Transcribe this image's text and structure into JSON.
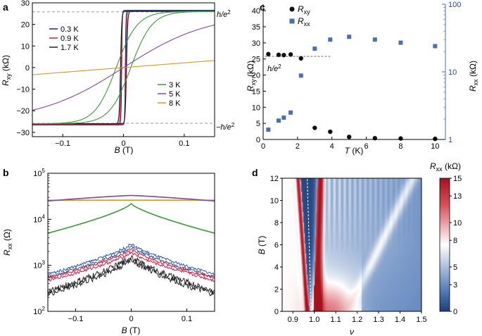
{
  "panels": {
    "a": {
      "label": "a"
    },
    "b": {
      "label": "b"
    },
    "c": {
      "label": "c"
    },
    "d": {
      "label": "d"
    }
  },
  "chart_data": [
    {
      "id": "a",
      "type": "line",
      "xlabel_var": "B",
      "xlabel_unit": "(T)",
      "ylabel_var": "R",
      "ylabel_sub": "xy",
      "ylabel_unit": "(kΩ)",
      "xlim": [
        -0.15,
        0.15
      ],
      "ylim": [
        -32,
        30
      ],
      "xticks": [
        -0.1,
        0,
        0.1
      ],
      "xtick_labels": [
        "−0.1",
        "0",
        "0.1"
      ],
      "yticks": [
        -30,
        -20,
        -10,
        0,
        10,
        20,
        30
      ],
      "ytick_labels": [
        "−30",
        "−20",
        "−10",
        "0",
        "10",
        "20",
        "30"
      ],
      "reference_lines": [
        {
          "y": 25.8,
          "label": "h/e",
          "sup": "2"
        },
        {
          "y": -25.8,
          "label": "−h/e",
          "sup": "2"
        }
      ],
      "series": [
        {
          "name": "0.3 K",
          "color": "#1c2a6b",
          "kind": "step",
          "plateau": 26.5,
          "width": 0.004,
          "hysteresis": 0.003
        },
        {
          "name": "0.9 K",
          "color": "#d11f3c",
          "kind": "step",
          "plateau": 26.2,
          "width": 0.006,
          "hysteresis": 0.004
        },
        {
          "name": "1.7 K",
          "color": "#222222",
          "kind": "step",
          "plateau": 26.0,
          "width": 0.008,
          "hysteresis": 0.005
        },
        {
          "name": "3 K",
          "color": "#3c9a3c",
          "kind": "tanh",
          "plateau": 26.0,
          "width": 0.035,
          "hysteresis": 0.012
        },
        {
          "name": "5 K",
          "color": "#7f4aa3",
          "kind": "tanh",
          "plateau": 25.0,
          "width": 0.14,
          "hysteresis": 0.0
        },
        {
          "name": "8 K",
          "color": "#d39a24",
          "kind": "linear",
          "slope": 22.0,
          "hysteresis": 0.0
        }
      ],
      "legend_groups": [
        {
          "position": "upper-left",
          "items": [
            "0.3 K",
            "0.9 K",
            "1.7 K"
          ]
        },
        {
          "position": "lower-right",
          "items": [
            "3 K",
            "5 K",
            "8 K"
          ]
        }
      ]
    },
    {
      "id": "b",
      "type": "line",
      "yscale": "log",
      "xlabel_var": "B",
      "xlabel_unit": "(T)",
      "ylabel_var": "R",
      "ylabel_sub": "xx",
      "ylabel_unit": "(Ω)",
      "xlim": [
        -0.15,
        0.15
      ],
      "ylim": [
        100,
        100000
      ],
      "xticks": [
        -0.1,
        0,
        0.1
      ],
      "xtick_labels": [
        "−0.1",
        "0",
        "0.1"
      ],
      "ytick_values": [
        100,
        1000,
        10000,
        100000
      ],
      "ytick_base": "10",
      "ytick_exps": [
        "2",
        "3",
        "4",
        "5"
      ],
      "series": [
        {
          "name": "8 K",
          "color": "#d39a24",
          "peak": 26000,
          "edge": 26000
        },
        {
          "name": "5 K",
          "color": "#7f4aa3",
          "peak": 33000,
          "edge": 25000
        },
        {
          "name": "3 K",
          "color": "#3c9a3c",
          "peak": 22000,
          "edge": 5000
        },
        {
          "name": "1.7 K",
          "color": "#2f59a8",
          "peak": 2800,
          "edge": 600
        },
        {
          "name": "0.9 K",
          "color": "#d11f3c",
          "peak": 2100,
          "edge": 500
        },
        {
          "name": "0.3 K",
          "color": "#222222",
          "peak": 1500,
          "edge": 250
        }
      ]
    },
    {
      "id": "c",
      "type": "scatter",
      "xlabel_var": "T",
      "xlabel_unit": "(K)",
      "ylabel_left_var": "R",
      "ylabel_left_sub": "xy",
      "ylabel_left_unit": "(kΩ)",
      "ylabel_right_var": "R",
      "ylabel_right_sub": "xx",
      "ylabel_right_unit": "(kΩ)",
      "xlim": [
        0,
        10.6
      ],
      "ylim_left": [
        0,
        42
      ],
      "ylim_right": [
        1,
        100
      ],
      "xticks": [
        0,
        2,
        4,
        6,
        8,
        10
      ],
      "xtick_labels": [
        "0",
        "2",
        "4",
        "6",
        "8",
        "10"
      ],
      "yticks_left": [
        0,
        5,
        10,
        15,
        20,
        25,
        30,
        35,
        40
      ],
      "ytick_left_labels": [
        "0",
        "5",
        "10",
        "15",
        "20",
        "25",
        "30",
        "35",
        "40"
      ],
      "yticks_right": [
        1,
        10,
        100
      ],
      "ytick_right_labels": [
        "1",
        "10",
        "100"
      ],
      "reference_line": {
        "y": 25.8,
        "label": "h/e",
        "sup": "2"
      },
      "series": [
        {
          "name": "R",
          "sub": "xy",
          "axis": "left",
          "marker": "circle",
          "color": "#111111",
          "x": [
            0.3,
            0.9,
            1.2,
            1.6,
            2.2,
            3.0,
            3.9,
            5.0,
            6.5,
            8.0,
            10.0
          ],
          "y": [
            26.5,
            26.3,
            26.2,
            26.4,
            25.2,
            3.6,
            2.4,
            0.8,
            0.4,
            0.3,
            0.2
          ]
        },
        {
          "name": "R",
          "sub": "xx",
          "axis": "right",
          "marker": "square",
          "color": "#4a6fb3",
          "x": [
            0.3,
            0.9,
            1.2,
            1.6,
            2.2,
            3.0,
            3.9,
            5.0,
            6.5,
            8.0,
            10.0
          ],
          "y": [
            1.4,
            1.9,
            2.1,
            2.5,
            8.8,
            22.0,
            30.0,
            33.0,
            30.0,
            27.0,
            24.0
          ]
        }
      ]
    },
    {
      "id": "d",
      "type": "heatmap",
      "xlabel_var": "ν",
      "ylabel_var": "B",
      "ylabel_unit": "(T)",
      "xlim": [
        0.85,
        1.5
      ],
      "ylim": [
        0,
        12
      ],
      "xticks": [
        0.9,
        1.0,
        1.1,
        1.2,
        1.3,
        1.4,
        1.5
      ],
      "xtick_labels": [
        "0.9",
        "1.0",
        "1.1",
        "1.2",
        "1.3",
        "1.4",
        "1.5"
      ],
      "yticks": [
        0,
        2,
        4,
        6,
        8,
        10,
        12
      ],
      "ytick_labels": [
        "0",
        "2",
        "4",
        "6",
        "8",
        "10",
        "12"
      ],
      "colorbar": {
        "title_var": "R",
        "title_sub": "xx",
        "title_unit": "(kΩ)",
        "min": 0,
        "max": 15,
        "ticks": [
          0,
          3,
          5,
          8,
          10,
          13,
          15
        ],
        "tick_labels": [
          "0",
          "3",
          "5",
          "8",
          "10",
          "13",
          "15"
        ],
        "colors": [
          "#1f3e7a",
          "#ffffff",
          "#b3202c"
        ]
      }
    }
  ]
}
